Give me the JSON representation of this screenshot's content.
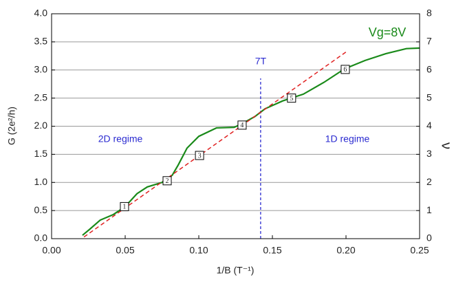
{
  "chart_data": {
    "type": "line",
    "xlabel": "1/B (T⁻¹)",
    "ylabel": "G (2e²/h)",
    "y2label": "ν",
    "xlim": [
      0,
      0.25
    ],
    "xticks": [
      {
        "value": 0,
        "label": "0.00"
      },
      0.05,
      {
        "value": 0.1,
        "label": "0.10"
      },
      0.15,
      {
        "value": 0.2,
        "label": "0.20"
      },
      0.25
    ],
    "ylim": [
      0,
      4
    ],
    "yticks": [
      {
        "value": 0,
        "label": "0.0"
      },
      0.5,
      {
        "value": 1,
        "label": "1.0"
      },
      1.5,
      {
        "value": 2,
        "label": "2.0"
      },
      2.5,
      {
        "value": 3,
        "label": "3.0"
      },
      3.5,
      {
        "value": 4,
        "label": "4.0"
      }
    ],
    "y2lim": [
      0,
      8
    ],
    "y2ticks": [
      0,
      1,
      2,
      3,
      4,
      5,
      6,
      7,
      8
    ],
    "grid": true,
    "series": [
      {
        "color": "#1a8a1a",
        "dash": false,
        "x": [
          0.021,
          0.026,
          0.033,
          0.042,
          0.05,
          0.058,
          0.065,
          0.075,
          0.082,
          0.086,
          0.092,
          0.1,
          0.112,
          0.124,
          0.129,
          0.138,
          0.145,
          0.157,
          0.171,
          0.185,
          0.199,
          0.213,
          0.227,
          0.241,
          0.25
        ],
        "values": [
          0.06,
          0.17,
          0.33,
          0.43,
          0.57,
          0.8,
          0.92,
          1.0,
          1.13,
          1.31,
          1.61,
          1.82,
          1.97,
          1.98,
          2.04,
          2.17,
          2.31,
          2.45,
          2.57,
          2.78,
          3.02,
          3.17,
          3.29,
          3.38,
          3.39
        ]
      },
      {
        "color": "#e02020",
        "dash": true,
        "x": [
          0.022,
          0.2
        ],
        "values": [
          0.03,
          3.32
        ]
      }
    ],
    "markers": [
      {
        "label": "1",
        "x": 0.0495,
        "y": 0.57
      },
      {
        "label": "2",
        "x": 0.0785,
        "y": 1.03
      },
      {
        "label": "3",
        "x": 0.1005,
        "y": 1.48
      },
      {
        "label": "4",
        "x": 0.1294,
        "y": 2.02
      },
      {
        "label": "5",
        "x": 0.163,
        "y": 2.5
      },
      {
        "label": "6",
        "x": 0.1995,
        "y": 3.01
      }
    ],
    "vline": {
      "x": 0.142,
      "y_top": 2.85,
      "label": "7T",
      "color": "#2a2ad0"
    },
    "annotations": [
      "2D regime",
      "1D regime",
      "Vg=8V"
    ]
  }
}
